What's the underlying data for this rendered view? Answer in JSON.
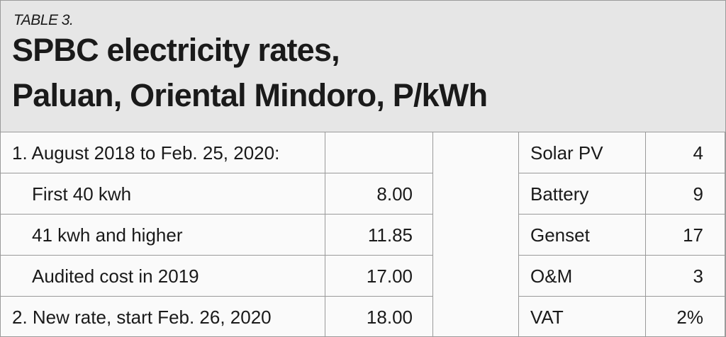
{
  "header": {
    "label": "TABLE 3.",
    "title": [
      "SPBC electricity rates,",
      "Paluan, Oriental Mindoro, P/kWh"
    ]
  },
  "table": {
    "left": [
      [
        "1. August 2018 to Feb. 25, 2020:",
        null
      ],
      [
        "First 40 kwh",
        "8.00"
      ],
      [
        "41 kwh and higher",
        "11.85"
      ],
      [
        "Audited cost in 2019",
        "17.00"
      ],
      [
        "2. New rate, start Feb. 26, 2020",
        "18.00"
      ]
    ],
    "right": [
      [
        "Solar PV",
        "4"
      ],
      [
        "Battery",
        "9"
      ],
      [
        "Genset",
        "17"
      ],
      [
        "O&M",
        "3"
      ],
      [
        "VAT",
        "2%"
      ]
    ]
  }
}
